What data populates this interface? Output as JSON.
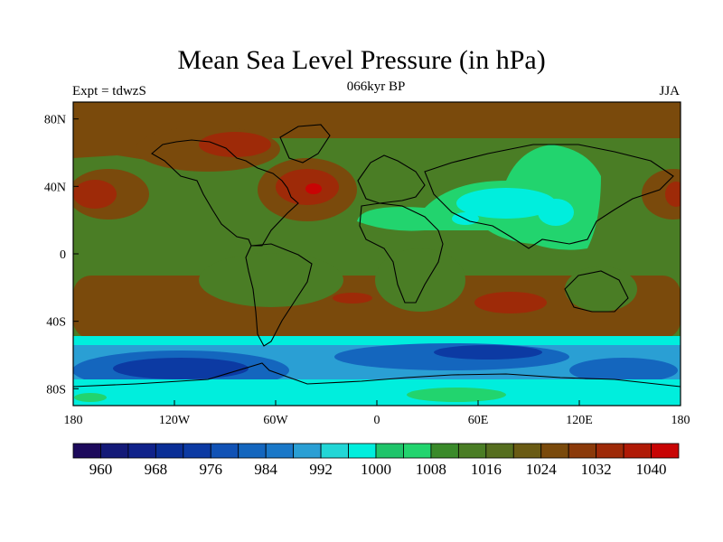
{
  "title": "Mean Sea Level Pressure (in hPa)",
  "subtitle_left": "Expt = tdwzS",
  "subtitle_center": "066kyr BP",
  "subtitle_right": "JJA",
  "axes": {
    "x_ticks": [
      {
        "value": -180,
        "label": "180"
      },
      {
        "value": -120,
        "label": "120W"
      },
      {
        "value": -60,
        "label": "60W"
      },
      {
        "value": 0,
        "label": "0"
      },
      {
        "value": 60,
        "label": "60E"
      },
      {
        "value": 120,
        "label": "120E"
      },
      {
        "value": 180,
        "label": "180"
      }
    ],
    "y_ticks": [
      {
        "value": 80,
        "label": "80N"
      },
      {
        "value": 40,
        "label": "40N"
      },
      {
        "value": 0,
        "label": "0"
      },
      {
        "value": -40,
        "label": "40S"
      },
      {
        "value": -80,
        "label": "80S"
      }
    ],
    "lon_range": [
      -180,
      180
    ],
    "lat_range": [
      -90,
      90
    ]
  },
  "colorbar": {
    "colors": [
      "#1d0a5c",
      "#141a78",
      "#10228a",
      "#0a2e96",
      "#0c3aa3",
      "#1152b5",
      "#1466be",
      "#1a78c8",
      "#2a9fd4",
      "#22d6d6",
      "#00eedd",
      "#1fc46a",
      "#22d46e",
      "#3a8a2a",
      "#4a7d25",
      "#566e1f",
      "#6a5b14",
      "#7a4a0c",
      "#8b3a0a",
      "#9e2a08",
      "#b01a06",
      "#c80404"
    ],
    "labels": [
      "960",
      "968",
      "976",
      "984",
      "992",
      "1000",
      "1008",
      "1016",
      "1024",
      "1032",
      "1040"
    ]
  },
  "regions": {
    "background": "#4a7d25",
    "high_pressure_color": "#7a4a0c",
    "very_high_color": "#9e2a08",
    "max_color": "#c80404",
    "low_green": "#22d46e",
    "cyan": "#00eedd",
    "light_blue": "#2a9fd4",
    "mid_blue": "#1466be",
    "deep_blue": "#0c3aa3"
  }
}
